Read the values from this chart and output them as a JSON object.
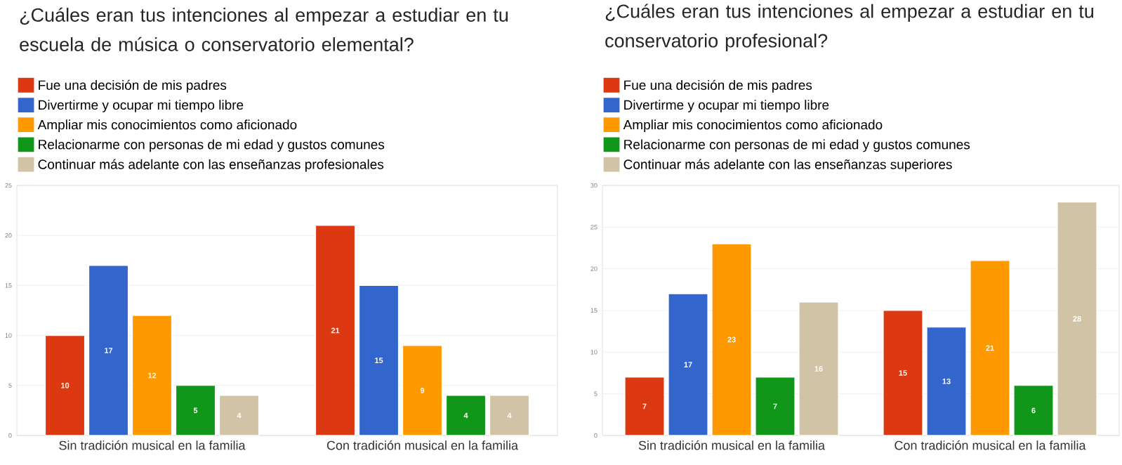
{
  "chart_data": [
    {
      "type": "bar",
      "title": "¿Cuáles eran tus intenciones al empezar a estudiar en tu escuela de música o conservatorio elemental?",
      "categories": [
        "Sin tradición musical en la familia",
        "Con tradición musical en la familia"
      ],
      "series": [
        {
          "name": "Fue una decisión de mis padres",
          "color": "#dc3912",
          "values": [
            10,
            21
          ]
        },
        {
          "name": "Divertirme y ocupar mi tiempo libre",
          "color": "#3366cc",
          "values": [
            17,
            15
          ]
        },
        {
          "name": "Ampliar mis conocimientos como aficionado",
          "color": "#ff9900",
          "values": [
            12,
            9
          ]
        },
        {
          "name": "Relacionarme con personas de mi edad y gustos comunes",
          "color": "#109618",
          "values": [
            5,
            4
          ]
        },
        {
          "name": "Continuar más adelante con las enseñanzas profesionales",
          "color": "#d0c3a6",
          "values": [
            4,
            4
          ]
        }
      ],
      "ylim": [
        0,
        25
      ],
      "yticks": [
        0,
        5,
        10,
        15,
        20,
        25
      ],
      "grid": "y",
      "legend": "top",
      "data_labels": true
    },
    {
      "type": "bar",
      "title": "¿Cuáles eran tus intenciones al empezar a estudiar en tu conservatorio profesional?",
      "categories": [
        "Sin tradición musical en la familia",
        "Con tradición musical en la familia"
      ],
      "series": [
        {
          "name": "Fue una decisión de mis padres",
          "color": "#dc3912",
          "values": [
            7,
            15
          ]
        },
        {
          "name": "Divertirme y ocupar mi tiempo libre",
          "color": "#3366cc",
          "values": [
            17,
            13
          ]
        },
        {
          "name": "Ampliar mis conocimientos como aficionado",
          "color": "#ff9900",
          "values": [
            23,
            21
          ]
        },
        {
          "name": "Relacionarme con personas de mi edad y gustos comunes",
          "color": "#109618",
          "values": [
            7,
            6
          ]
        },
        {
          "name": "Continuar más adelante con las enseñanzas superiores",
          "color": "#d0c3a6",
          "values": [
            16,
            28
          ]
        }
      ],
      "ylim": [
        0,
        30
      ],
      "yticks": [
        0,
        5,
        10,
        15,
        20,
        25,
        30
      ],
      "grid": "y",
      "legend": "top",
      "data_labels": true
    }
  ]
}
